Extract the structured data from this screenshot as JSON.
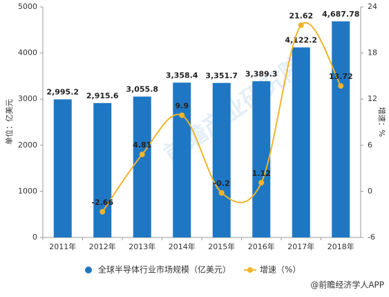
{
  "chart_data": {
    "type": "bar_line",
    "categories": [
      "2011年",
      "2012年",
      "2013年",
      "2014年",
      "2015年",
      "2016年",
      "2017年",
      "2018年"
    ],
    "series": [
      {
        "name": "全球半导体行业市场规模（亿美元）",
        "type": "bar",
        "color": "#1f77c4",
        "values": [
          2995.2,
          2915.6,
          3055.8,
          3358.4,
          3351.7,
          3389.3,
          4122.2,
          4687.78
        ],
        "value_labels": [
          "2,995.2",
          "2,915.6",
          "3,055.8",
          "3,358.4",
          "3,351.7",
          "3,389.3",
          "4,122.2",
          "4,687.78"
        ]
      },
      {
        "name": "增速（%）",
        "type": "line",
        "axis": "y2",
        "color": "#f0b429",
        "values": [
          null,
          -2.66,
          4.81,
          9.9,
          -0.2,
          1.12,
          21.62,
          13.72
        ]
      }
    ],
    "ylabel": "单位：亿美元",
    "y2label": "增速：%",
    "ylim": [
      0,
      5000
    ],
    "yticks": [
      0,
      1000,
      2000,
      3000,
      4000,
      5000
    ],
    "y2lim": [
      -6,
      24
    ],
    "y2ticks": [
      -6,
      0,
      6,
      12,
      18,
      24
    ],
    "watermark": "前瞻产业研究院",
    "source": "@前瞻经济学人APP"
  }
}
